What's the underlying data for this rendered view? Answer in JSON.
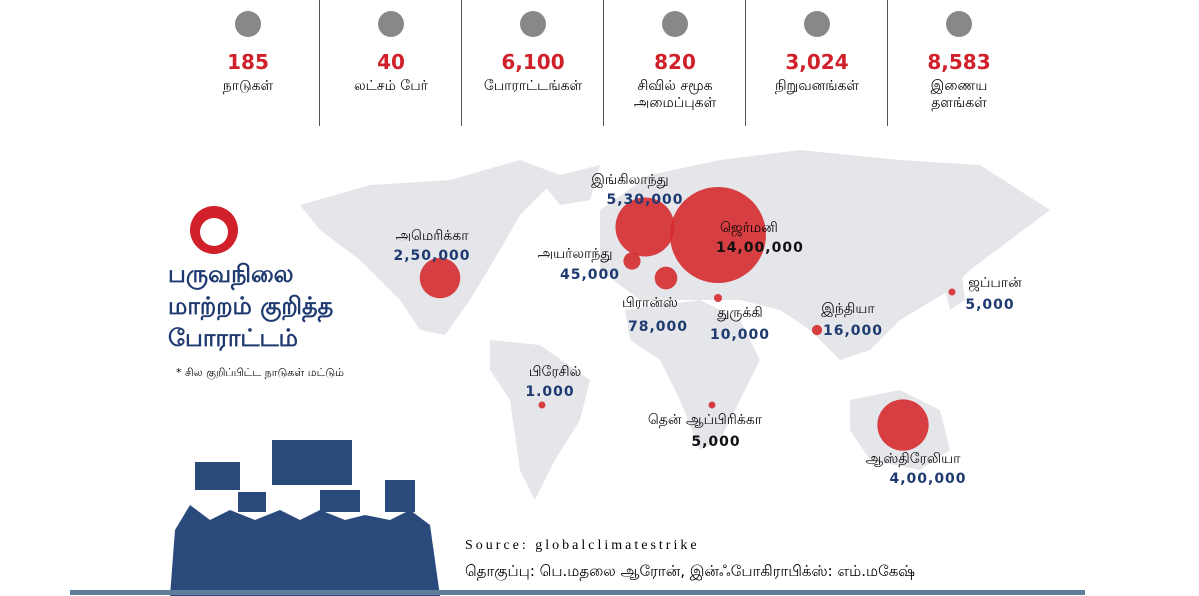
{
  "stats": [
    {
      "number": "185",
      "label": "நாடுகள்"
    },
    {
      "number": "40",
      "label": "லட்சம் பேர்"
    },
    {
      "number": "6,100",
      "label": "போராட்டங்கள்"
    },
    {
      "number": "820",
      "label": "சிவில் சமூக\nஅமைப்புகள்"
    },
    {
      "number": "3,024",
      "label": "நிறுவனங்கள்"
    },
    {
      "number": "8,583",
      "label": "இணைய\nதளங்கள்"
    }
  ],
  "title": "பருவநிலை\nமாற்றம் குறித்த\nபோராட்டம்",
  "note": "* சில குறிப்பிட்ட நாடுகள் மட்டும்",
  "countries": [
    {
      "name": "இங்கிலாந்து",
      "value": 530000,
      "label": "5,30,000"
    },
    {
      "name": "ஜெர்மனி",
      "value": 1400000,
      "label": "14,00,000"
    },
    {
      "name": "அமெரிக்கா",
      "value": 250000,
      "label": "2,50,000"
    },
    {
      "name": "அயர்லாந்து",
      "value": 45000,
      "label": "45,000"
    },
    {
      "name": "பிரான்ஸ்",
      "value": 78000,
      "label": "78,000"
    },
    {
      "name": "துருக்கி",
      "value": 10000,
      "label": "10,000"
    },
    {
      "name": "இந்தியா",
      "value": 16000,
      "label": "16,000"
    },
    {
      "name": "ஜப்பான்",
      "value": 5000,
      "label": "5,000"
    },
    {
      "name": "பிரேசில்",
      "value": 1000,
      "label": "1.000"
    },
    {
      "name": "தென் ஆப்பிரிக்கா",
      "value": 5000,
      "label": "5,000"
    },
    {
      "name": "ஆஸ்திரேலியா",
      "value": 400000,
      "label": "4,00,000"
    }
  ],
  "source": "Source: globalclimatestrike",
  "credit": "தொகுப்பு: பெ.மதலை ஆரோன், இன்ஃபோகிராபிக்ஸ்: எம்.மகேஷ்"
}
